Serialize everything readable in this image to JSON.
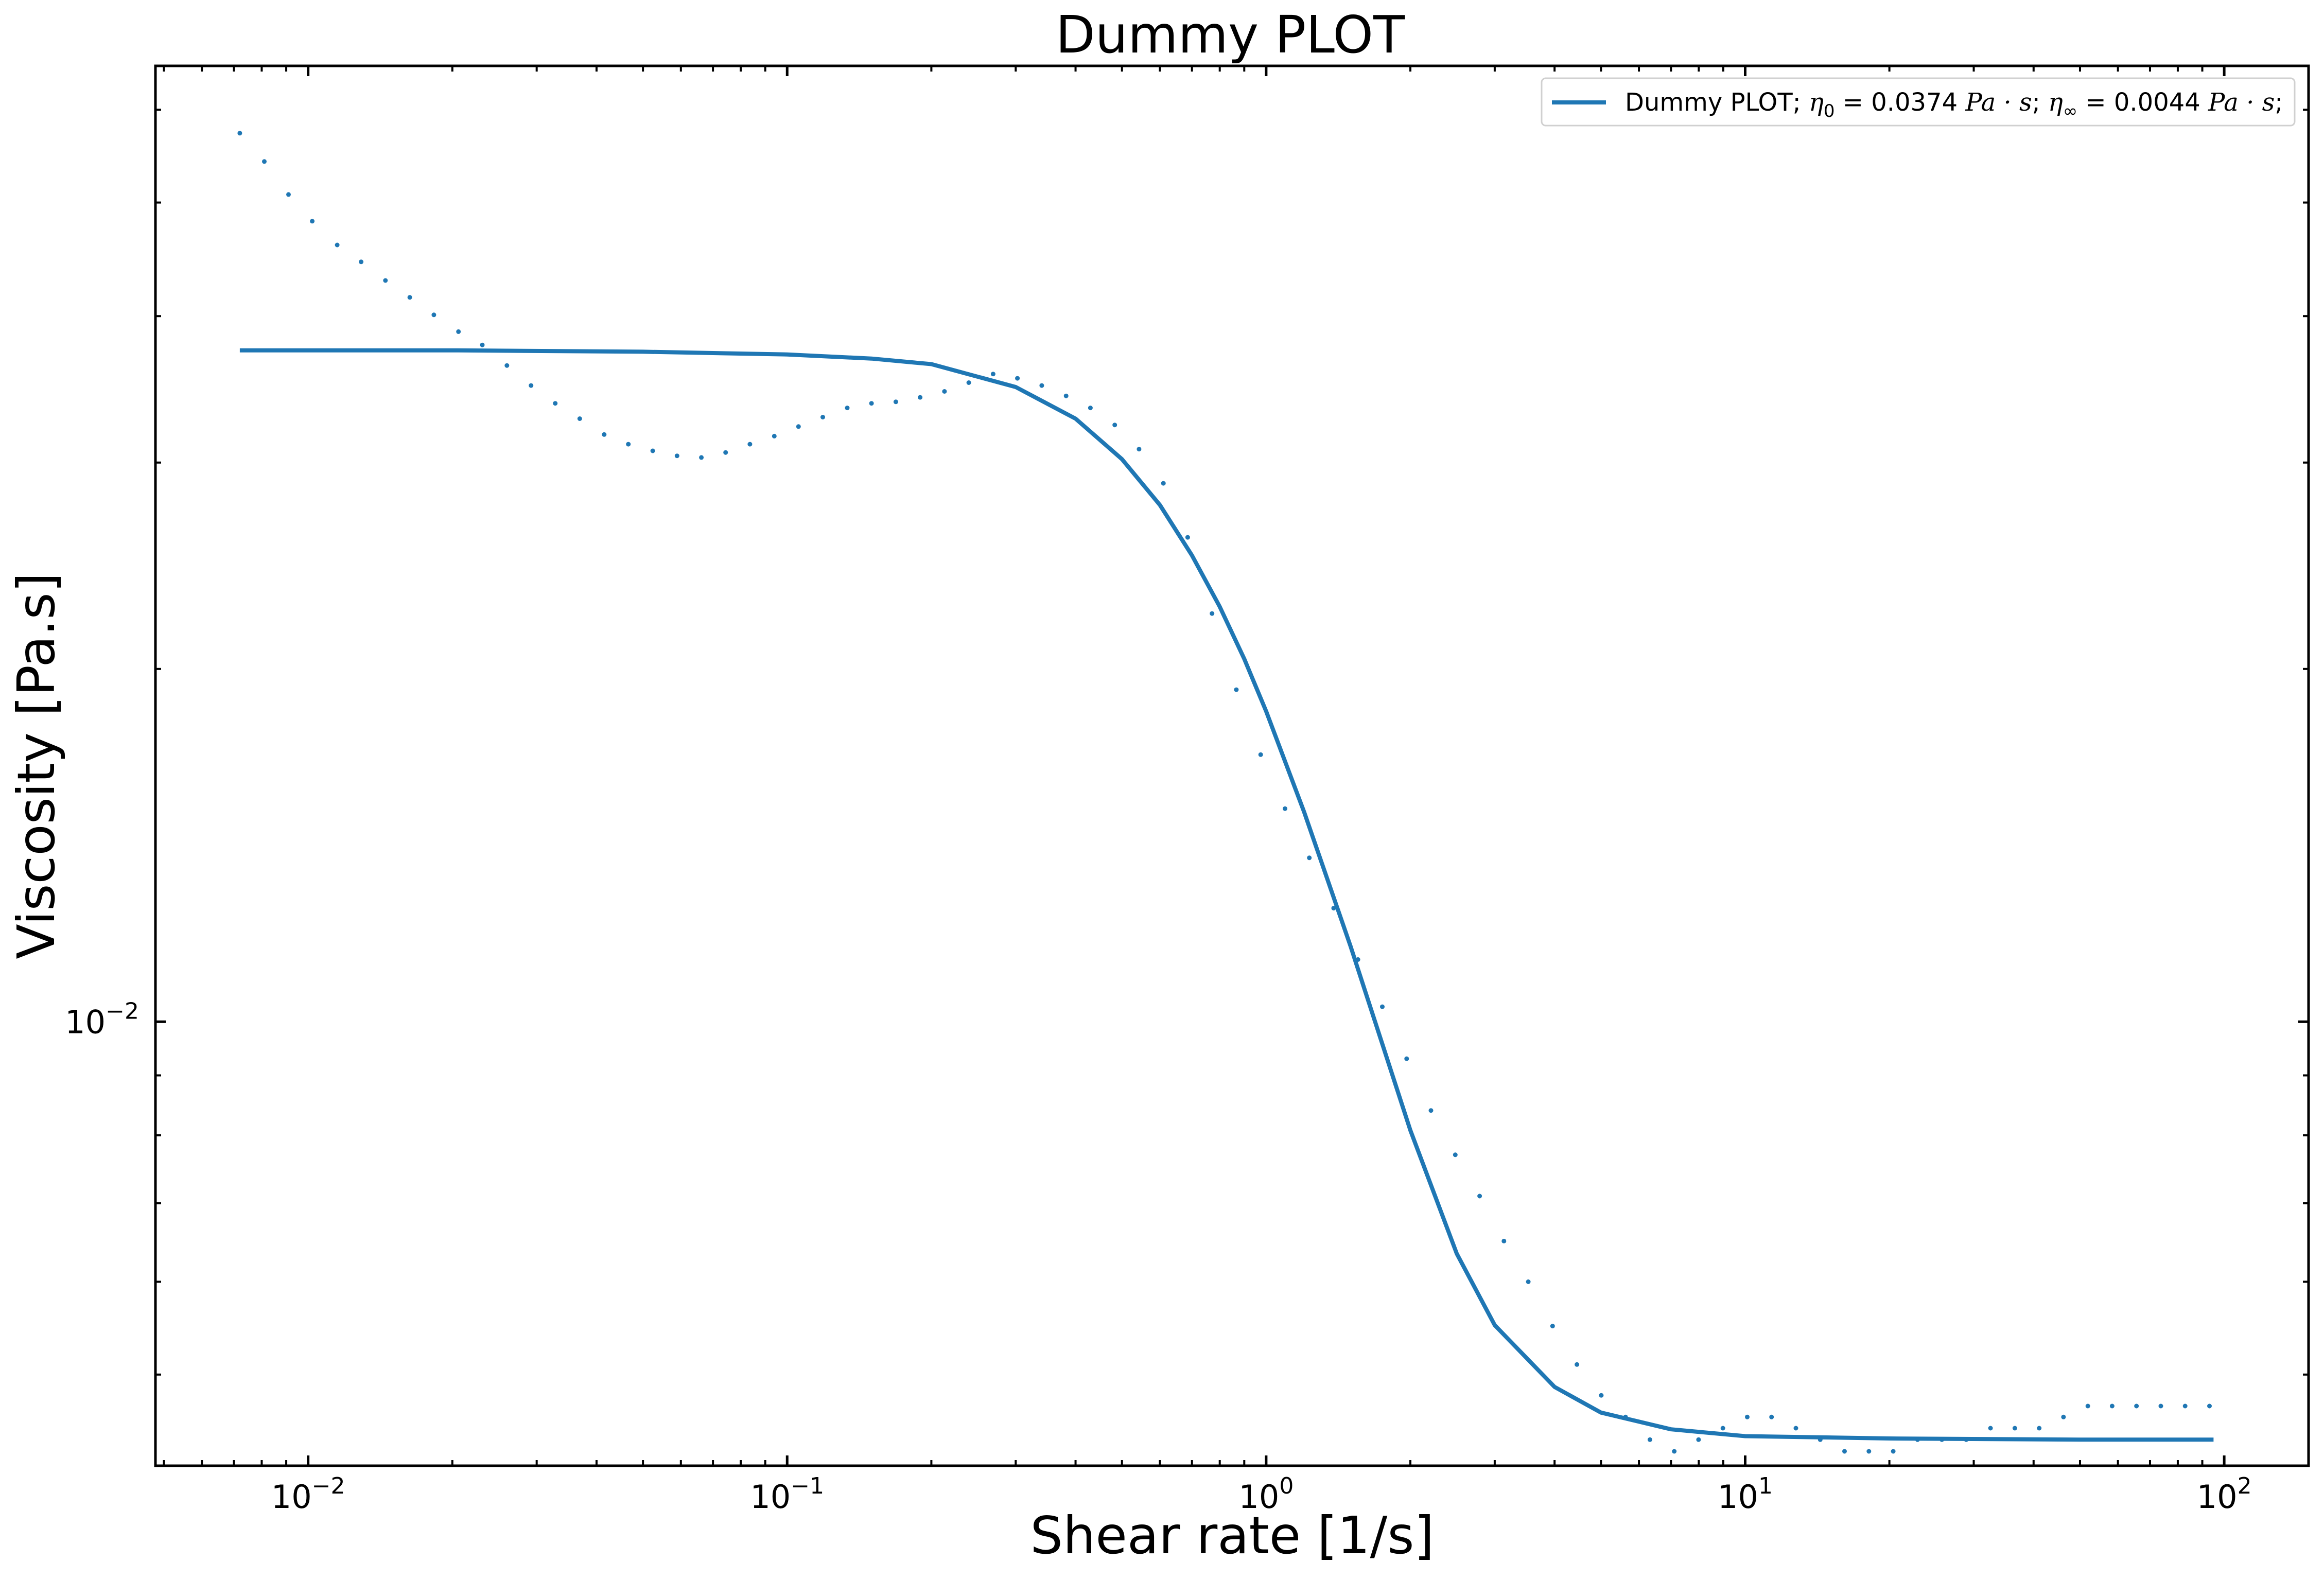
{
  "chart_data": {
    "type": "line",
    "title": "Dummy PLOT",
    "xlabel": "Shear rate [1/s]",
    "ylabel": "Viscosity [Pa.s]",
    "xscale": "log",
    "yscale": "log",
    "xlim": [
      0.0048,
      150
    ],
    "ylim": [
      0.00418,
      0.0654
    ],
    "x_tick_labels": [
      {
        "value": 0.01,
        "base": "10",
        "exp": "−2"
      },
      {
        "value": 0.1,
        "base": "10",
        "exp": "−1"
      },
      {
        "value": 1,
        "base": "10",
        "exp": "0"
      },
      {
        "value": 10,
        "base": "10",
        "exp": "1"
      },
      {
        "value": 100,
        "base": "10",
        "exp": "2"
      }
    ],
    "y_tick_labels": [
      {
        "value": 0.01,
        "base": "10",
        "exp": "−2"
      }
    ],
    "grid": false,
    "legend": {
      "position": "top-right",
      "entries": [
        {
          "label_parts": [
            {
              "text": "Dummy PLOT; ",
              "math": false
            },
            {
              "text": "η",
              "math": true
            },
            {
              "text": "0",
              "math": false,
              "sub": true
            },
            {
              "text": " = 0.0374 ",
              "math": false
            },
            {
              "text": "Pa · s",
              "math": true
            },
            {
              "text": "; ",
              "math": false
            },
            {
              "text": "η",
              "math": true
            },
            {
              "text": "∞",
              "math": false,
              "sub": true
            },
            {
              "text": " = 0.0044 ",
              "math": false
            },
            {
              "text": "Pa · s",
              "math": true
            },
            {
              "text": ";",
              "math": false
            }
          ]
        }
      ]
    },
    "series": [
      {
        "name": "Dummy PLOT; η0 = 0.0374 Pa·s; η∞ = 0.0044 Pa·s;",
        "style": "line",
        "color": "#1f77b4",
        "x": [
          0.0072,
          0.01,
          0.02,
          0.05,
          0.1,
          0.15,
          0.2,
          0.3,
          0.4,
          0.5,
          0.6,
          0.7,
          0.8,
          0.9,
          1.0,
          1.2,
          1.5,
          2.0,
          2.5,
          3.0,
          4.0,
          5.0,
          7.0,
          10,
          20,
          50,
          95
        ],
        "y": [
          0.0374,
          0.0374,
          0.0374,
          0.0373,
          0.0371,
          0.0368,
          0.0364,
          0.0348,
          0.0327,
          0.0302,
          0.0276,
          0.025,
          0.0226,
          0.0204,
          0.0184,
          0.0151,
          0.0116,
          0.00808,
          0.00634,
          0.00551,
          0.00488,
          0.00464,
          0.00449,
          0.00443,
          0.00441,
          0.0044,
          0.0044
        ]
      },
      {
        "name": "data",
        "style": "dots",
        "color": "#1f77b4",
        "x": [
          0.0072,
          0.0081,
          0.0091,
          0.0102,
          0.0115,
          0.0129,
          0.0145,
          0.0163,
          0.0183,
          0.0206,
          0.0231,
          0.026,
          0.0292,
          0.0328,
          0.0369,
          0.0415,
          0.0466,
          0.0524,
          0.0589,
          0.0662,
          0.0744,
          0.0836,
          0.094,
          0.1056,
          0.1187,
          0.1335,
          0.15,
          0.1686,
          0.1895,
          0.213,
          0.2394,
          0.2691,
          0.3025,
          0.34,
          0.3822,
          0.4296,
          0.4829,
          0.5428,
          0.6101,
          0.6858,
          0.7708,
          0.8664,
          0.9739,
          1.0947,
          1.2305,
          1.3831,
          1.5547,
          1.7476,
          1.9644,
          2.2081,
          2.482,
          2.7899,
          3.136,
          3.525,
          3.9623,
          4.4539,
          5.0064,
          5.6275,
          6.3256,
          7.1104,
          7.9925,
          8.9841,
          10.0986,
          11.3514,
          12.7597,
          14.3426,
          16.1219,
          18.1219,
          20.3701,
          22.8971,
          25.7377,
          28.9307,
          32.5198,
          36.5541,
          41.089,
          46.1864,
          51.9162,
          58.3569,
          65.5967,
          73.7346,
          82.882,
          93.1643
        ],
        "y": [
          0.0573,
          0.0542,
          0.0508,
          0.0482,
          0.046,
          0.0445,
          0.0429,
          0.0415,
          0.0401,
          0.0388,
          0.0378,
          0.0363,
          0.0349,
          0.0337,
          0.0327,
          0.0317,
          0.0311,
          0.0307,
          0.0304,
          0.0303,
          0.0306,
          0.0311,
          0.0316,
          0.0322,
          0.0328,
          0.0334,
          0.0337,
          0.0338,
          0.0341,
          0.0345,
          0.0351,
          0.0357,
          0.0354,
          0.0349,
          0.0342,
          0.0334,
          0.0323,
          0.0308,
          0.0288,
          0.0259,
          0.0223,
          0.0192,
          0.0169,
          0.0152,
          0.0138,
          0.0125,
          0.0113,
          0.0103,
          0.0093,
          0.0084,
          0.0077,
          0.0071,
          0.0065,
          0.006,
          0.0055,
          0.0051,
          0.0048,
          0.0046,
          0.0044,
          0.0043,
          0.0044,
          0.0045,
          0.0046,
          0.0046,
          0.0045,
          0.0044,
          0.0043,
          0.0043,
          0.0043,
          0.0044,
          0.0044,
          0.0044,
          0.0045,
          0.0045,
          0.0045,
          0.0046,
          0.0047,
          0.0047,
          0.0047,
          0.0047,
          0.0047,
          0.0047
        ]
      }
    ]
  }
}
